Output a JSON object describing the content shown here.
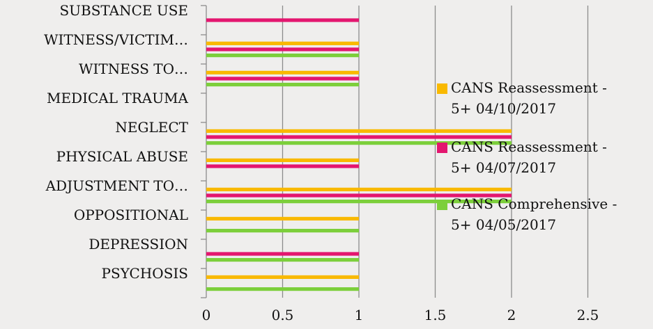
{
  "chart_data": {
    "type": "bar",
    "orientation": "horizontal",
    "categories": [
      "PSYCHOSIS",
      "DEPRESSION",
      "OPPOSITIONAL",
      "ADJUSTMENT TO…",
      "PHYSICAL ABUSE",
      "NEGLECT",
      "MEDICAL TRAUMA",
      "WITNESS TO…",
      "WITNESS/VICTIM…",
      "SUBSTANCE USE"
    ],
    "category_order": "bottom-to-top",
    "_note": "Each category band contains the categories above a tick label and its bars stacked (top→bottom): Reassessment 04/10, Reassessment 04/07, Comprehensive 04/05.",
    "series": [
      {
        "name": "CANS Reassessment - 5+ 04/10/2017",
        "color": "#f9b900",
        "values": [
          1,
          0,
          1,
          2,
          1,
          2,
          0,
          1,
          1,
          0
        ]
      },
      {
        "name": "CANS Reassessment - 5+ 04/07/2017",
        "color": "#e3166f",
        "values": [
          0,
          1,
          0,
          2,
          1,
          2,
          0,
          1,
          1,
          1
        ]
      },
      {
        "name": "CANS Comprehensive - 5+ 04/05/2017",
        "color": "#7ccf3b",
        "values": [
          1,
          1,
          1,
          2,
          0,
          2,
          0,
          1,
          1,
          0
        ]
      }
    ],
    "xticks": [
      "0",
      "0.5",
      "1",
      "1.5",
      "2",
      "2.5"
    ],
    "xlim": [
      0,
      2.5
    ],
    "grid": "vertical",
    "legend": "right"
  }
}
